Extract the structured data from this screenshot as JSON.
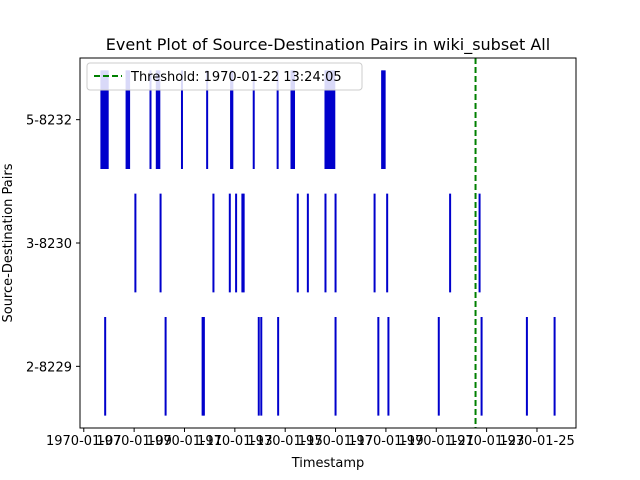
{
  "chart_data": {
    "type": "eventplot",
    "title": "Event Plot of Source-Destination Pairs in wiki_subset All",
    "xlabel": "Timestamp",
    "ylabel": "Source-Destination Pairs",
    "xlim": [
      -0.15,
      19.55
    ],
    "ylim": [
      -0.5,
      2.5
    ],
    "x_origin_date": "1970-01-07",
    "x_ticks": [
      {
        "value": 0,
        "label": "1970-01-07"
      },
      {
        "value": 2,
        "label": "1970-01-09"
      },
      {
        "value": 4,
        "label": "1970-01-11"
      },
      {
        "value": 6,
        "label": "1970-01-13"
      },
      {
        "value": 8,
        "label": "1970-01-15"
      },
      {
        "value": 10,
        "label": "1970-01-17"
      },
      {
        "value": 12,
        "label": "1970-01-19"
      },
      {
        "value": 14,
        "label": "1970-01-21"
      },
      {
        "value": 16,
        "label": "1970-01-23"
      },
      {
        "value": 18,
        "label": "1970-01-25"
      }
    ],
    "categories": [
      "2-8229",
      "3-8230",
      "5-8232"
    ],
    "series": [
      {
        "name": "2-8229",
        "color": "#0000cc",
        "events": [
          0.85,
          3.25,
          4.72,
          4.77,
          6.95,
          7.05,
          7.72,
          10.0,
          11.7,
          12.1,
          14.1,
          15.8,
          17.6,
          18.7
        ]
      },
      {
        "name": "3-8230",
        "color": "#0000cc",
        "events": [
          2.05,
          3.05,
          5.15,
          5.8,
          6.05,
          6.3,
          6.35,
          8.5,
          8.9,
          9.6,
          10.0,
          11.55,
          12.05,
          14.55,
          15.72
        ]
      },
      {
        "name": "5-8232",
        "color": "#0000cc",
        "events": [
          0.7,
          0.75,
          0.8,
          0.85,
          0.9,
          0.95,
          1.7,
          1.75,
          1.8,
          2.65,
          2.9,
          2.95,
          3.0,
          3.9,
          4.9,
          5.85,
          5.9,
          6.75,
          7.7,
          8.25,
          8.3,
          8.35,
          9.6,
          9.65,
          9.7,
          9.75,
          9.8,
          9.85,
          9.9,
          9.95,
          11.85,
          11.9,
          11.95
        ]
      }
    ],
    "threshold": {
      "value": 15.56,
      "label": "Threshold: 1970-01-22 13:24:05",
      "color": "#008000",
      "style": "dashed"
    },
    "legend": "top-left",
    "grid": false
  }
}
